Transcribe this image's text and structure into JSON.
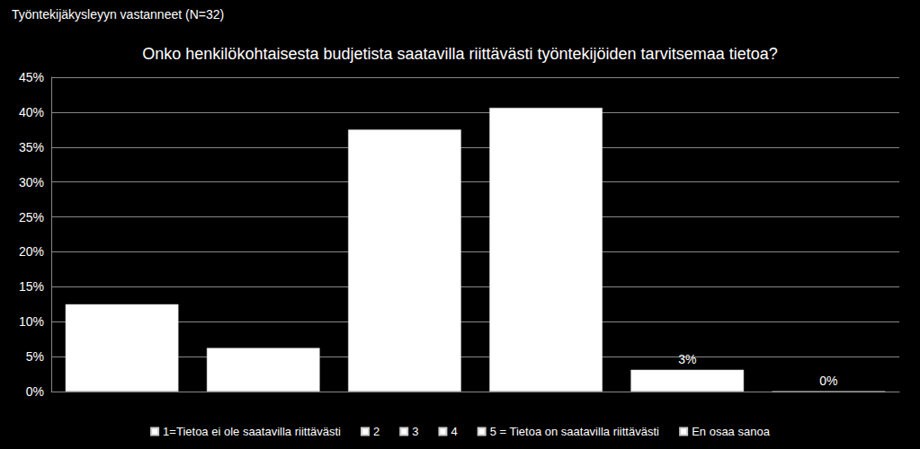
{
  "chart_data": {
    "type": "bar",
    "title": "Onko henkilökohtaisesta budjetista saatavilla riittävästi työntekijöiden tarvitsemaa tietoa?",
    "subtitle": "Työntekijäkysleyyn vastanneet (N=32)",
    "categories": [
      "1=Tietoa ei ole saatavilla riittävästi",
      "2",
      "3",
      "4",
      "5 = Tietoa on saatavilla riittävästi",
      "En osaa sanoa"
    ],
    "values": [
      12.5,
      6.25,
      37.5,
      40.625,
      3.125,
      0
    ],
    "value_labels": [
      null,
      null,
      null,
      null,
      "3%",
      "0%"
    ],
    "data_labels": true,
    "color": "#ffffff",
    "ylim": [
      0,
      45
    ],
    "yticks": [
      {
        "value": 0,
        "label": "0%"
      },
      {
        "value": 5,
        "label": "5%"
      },
      {
        "value": 10,
        "label": "10%"
      },
      {
        "value": 15,
        "label": "15%"
      },
      {
        "value": 20,
        "label": "20%"
      },
      {
        "value": 25,
        "label": "25%"
      },
      {
        "value": 30,
        "label": "30%"
      },
      {
        "value": 35,
        "label": "35%"
      },
      {
        "value": 40,
        "label": "40%"
      },
      {
        "value": 45,
        "label": "45%"
      }
    ],
    "grid": true,
    "legend": "bottom",
    "tick_labels": "y"
  }
}
